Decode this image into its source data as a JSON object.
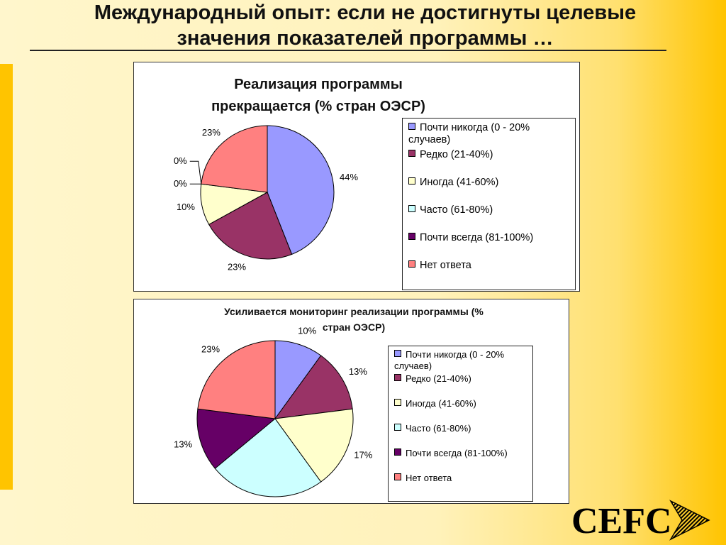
{
  "slide": {
    "title_line1": "Международный опыт: если не достигнуты целевые",
    "title_line2": "значения показателей программы …",
    "logo_text": "CEFC"
  },
  "chart_data": [
    {
      "type": "pie",
      "title": "Реализация программы прекращается (% стран ОЭСР)",
      "title_line1": "Реализация программы",
      "title_line2": "прекращается (% стран ОЭСР)",
      "legend_placement": "right",
      "slices": [
        {
          "label": "Почти никогда (0 - 20% случаев)",
          "legend_line1": "Почти никогда (0 - 20%",
          "legend_line2": "случаев)",
          "value": 44,
          "display": "44%",
          "color": "#9999ff"
        },
        {
          "label": "Редко (21-40%)",
          "legend_line1": "Редко (21-40%)",
          "legend_line2": "",
          "value": 23,
          "display": "23%",
          "color": "#993366"
        },
        {
          "label": "Иногда (41-60%)",
          "legend_line1": "Иногда (41-60%)",
          "legend_line2": "",
          "value": 10,
          "display": "10%",
          "color": "#ffffcc"
        },
        {
          "label": "Часто (61-80%)",
          "legend_line1": "Часто (61-80%)",
          "legend_line2": "",
          "value": 0,
          "display": "0%",
          "color": "#ccffff"
        },
        {
          "label": "Почти всегда (81-100%)",
          "legend_line1": "Почти всегда (81-100%)",
          "legend_line2": "",
          "value": 0,
          "display": "0%",
          "color": "#660066"
        },
        {
          "label": "Нет ответа",
          "legend_line1": "Нет ответа",
          "legend_line2": "",
          "value": 23,
          "display": "23%",
          "color": "#ff8080"
        }
      ]
    },
    {
      "type": "pie",
      "title": "Усиливается мониторинг реализации программы (% стран ОЭСР)",
      "title_line1": "Усиливается мониторинг реализации программы (%",
      "title_line2": "стран ОЭСР)",
      "legend_placement": "right",
      "slices": [
        {
          "label": "Почти никогда (0 - 20% случаев)",
          "legend_line1": "Почти никогда (0 - 20%",
          "legend_line2": "случаев)",
          "value": 10,
          "display": "10%",
          "color": "#9999ff"
        },
        {
          "label": "Редко (21-40%)",
          "legend_line1": "Редко (21-40%)",
          "legend_line2": "",
          "value": 13,
          "display": "13%",
          "color": "#993366"
        },
        {
          "label": "Иногда (41-60%)",
          "legend_line1": "Иногда (41-60%)",
          "legend_line2": "",
          "value": 17,
          "display": "17%",
          "color": "#ffffcc"
        },
        {
          "label": "Часто (61-80%)",
          "legend_line1": "Часто (61-80%)",
          "legend_line2": "",
          "value": 24,
          "display": "24%",
          "color": "#ccffff"
        },
        {
          "label": "Почти всегда (81-100%)",
          "legend_line1": "Почти всегда (81-100%)",
          "legend_line2": "",
          "value": 13,
          "display": "13%",
          "color": "#660066"
        },
        {
          "label": "Нет ответа",
          "legend_line1": "Нет ответа",
          "legend_line2": "",
          "value": 23,
          "display": "23%",
          "color": "#ff8080"
        }
      ]
    }
  ]
}
